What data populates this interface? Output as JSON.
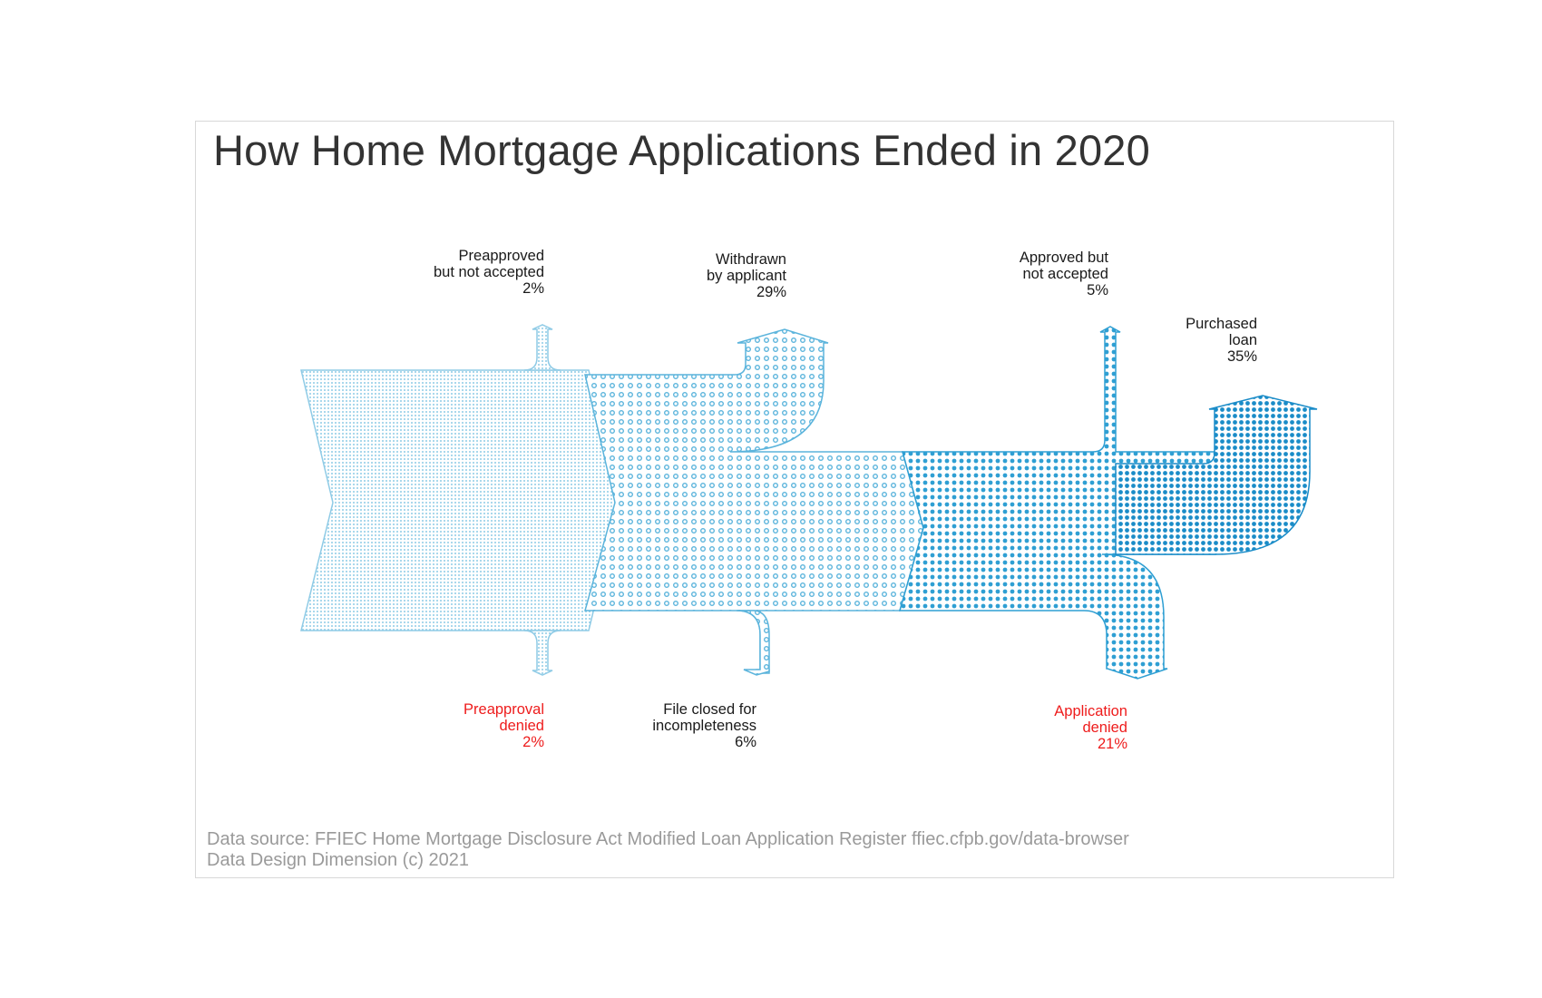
{
  "title": "How Home Mortgage Applications Ended in 2020",
  "colors": {
    "stage1": "#8fcbe6",
    "stage2": "#5bb4dc",
    "stage3": "#2f9fd3",
    "stage4": "#1a8cc8",
    "label": "#1a1a1a",
    "denied": "#ee1c1c",
    "source": "#9a9a9a"
  },
  "outcomes": [
    {
      "id": "preapproved-not-accepted",
      "lines": [
        "Preapproved",
        "but not accepted"
      ],
      "pct": "2%",
      "value": 2,
      "side": "top",
      "denied": false
    },
    {
      "id": "preapproval-denied",
      "lines": [
        "Preapproval",
        "denied"
      ],
      "pct": "2%",
      "value": 2,
      "side": "bottom",
      "denied": true
    },
    {
      "id": "withdrawn",
      "lines": [
        "Withdrawn",
        "by applicant"
      ],
      "pct": "29%",
      "value": 29,
      "side": "top",
      "denied": false
    },
    {
      "id": "file-closed",
      "lines": [
        "File closed for",
        "incompleteness"
      ],
      "pct": "6%",
      "value": 6,
      "side": "bottom",
      "denied": false
    },
    {
      "id": "approved-not-accepted",
      "lines": [
        "Approved but",
        "not accepted"
      ],
      "pct": "5%",
      "value": 5,
      "side": "top",
      "denied": false
    },
    {
      "id": "application-denied",
      "lines": [
        "Application",
        "denied"
      ],
      "pct": "21%",
      "value": 21,
      "side": "bottom",
      "denied": true
    },
    {
      "id": "purchased-loan",
      "lines": [
        "Purchased",
        "loan"
      ],
      "pct": "35%",
      "value": 35,
      "side": "end",
      "denied": false
    }
  ],
  "source": {
    "line1": "Data source: FFIEC Home Mortgage Disclosure Act Modified Loan Application Register ffiec.cfpb.gov/data-browser",
    "line2": "Data Design Dimension (c) 2021"
  }
}
